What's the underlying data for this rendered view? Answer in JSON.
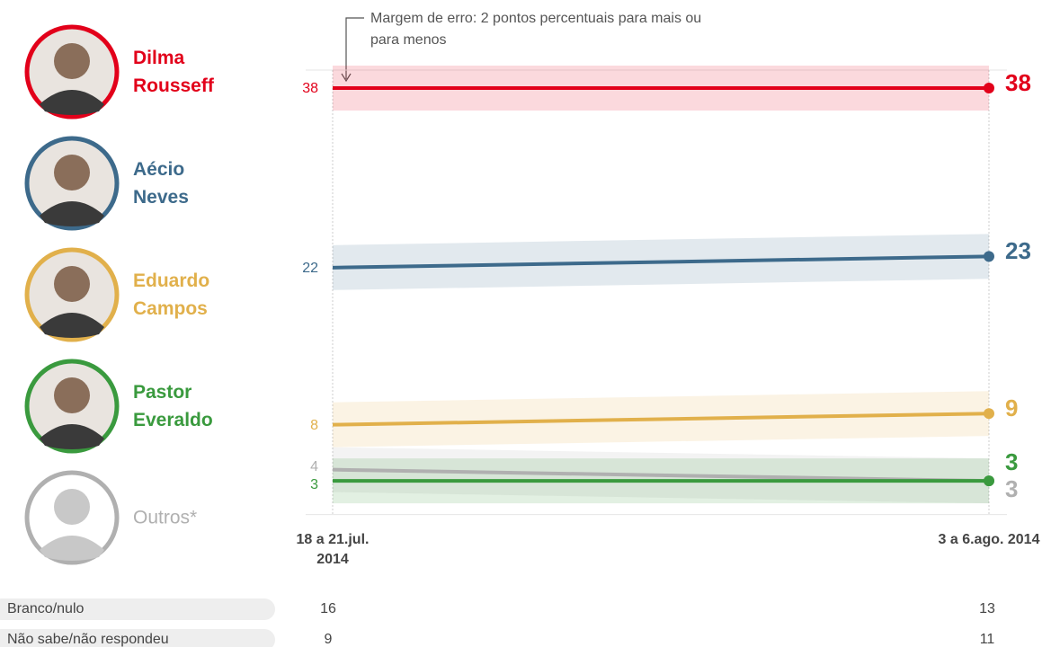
{
  "chart_data": {
    "type": "line",
    "annotation": "Margem de erro: 2 pontos percentuais para mais ou para menos",
    "error_margin": 2,
    "categories": [
      "18 a 21.jul. 2014",
      "3 a 6.ago. 2014"
    ],
    "ylim": [
      0,
      40
    ],
    "series": [
      {
        "name": "Dilma Rousseff",
        "color": "#e2001a",
        "values": [
          38,
          38
        ]
      },
      {
        "name": "Aécio Neves",
        "color": "#3d6a8b",
        "values": [
          22,
          23
        ]
      },
      {
        "name": "Eduardo Campos",
        "color": "#e1b04b",
        "values": [
          8,
          9
        ]
      },
      {
        "name": "Pastor Everaldo",
        "color": "#3a9a3e",
        "values": [
          3,
          3
        ]
      },
      {
        "name": "Outros*",
        "color": "#b0b0b0",
        "values": [
          4,
          3
        ]
      }
    ],
    "rows": [
      {
        "label": "Branco/nulo",
        "values": [
          16,
          13
        ]
      },
      {
        "label": "Não sabe/não respondeu",
        "values": [
          9,
          11
        ]
      }
    ]
  }
}
